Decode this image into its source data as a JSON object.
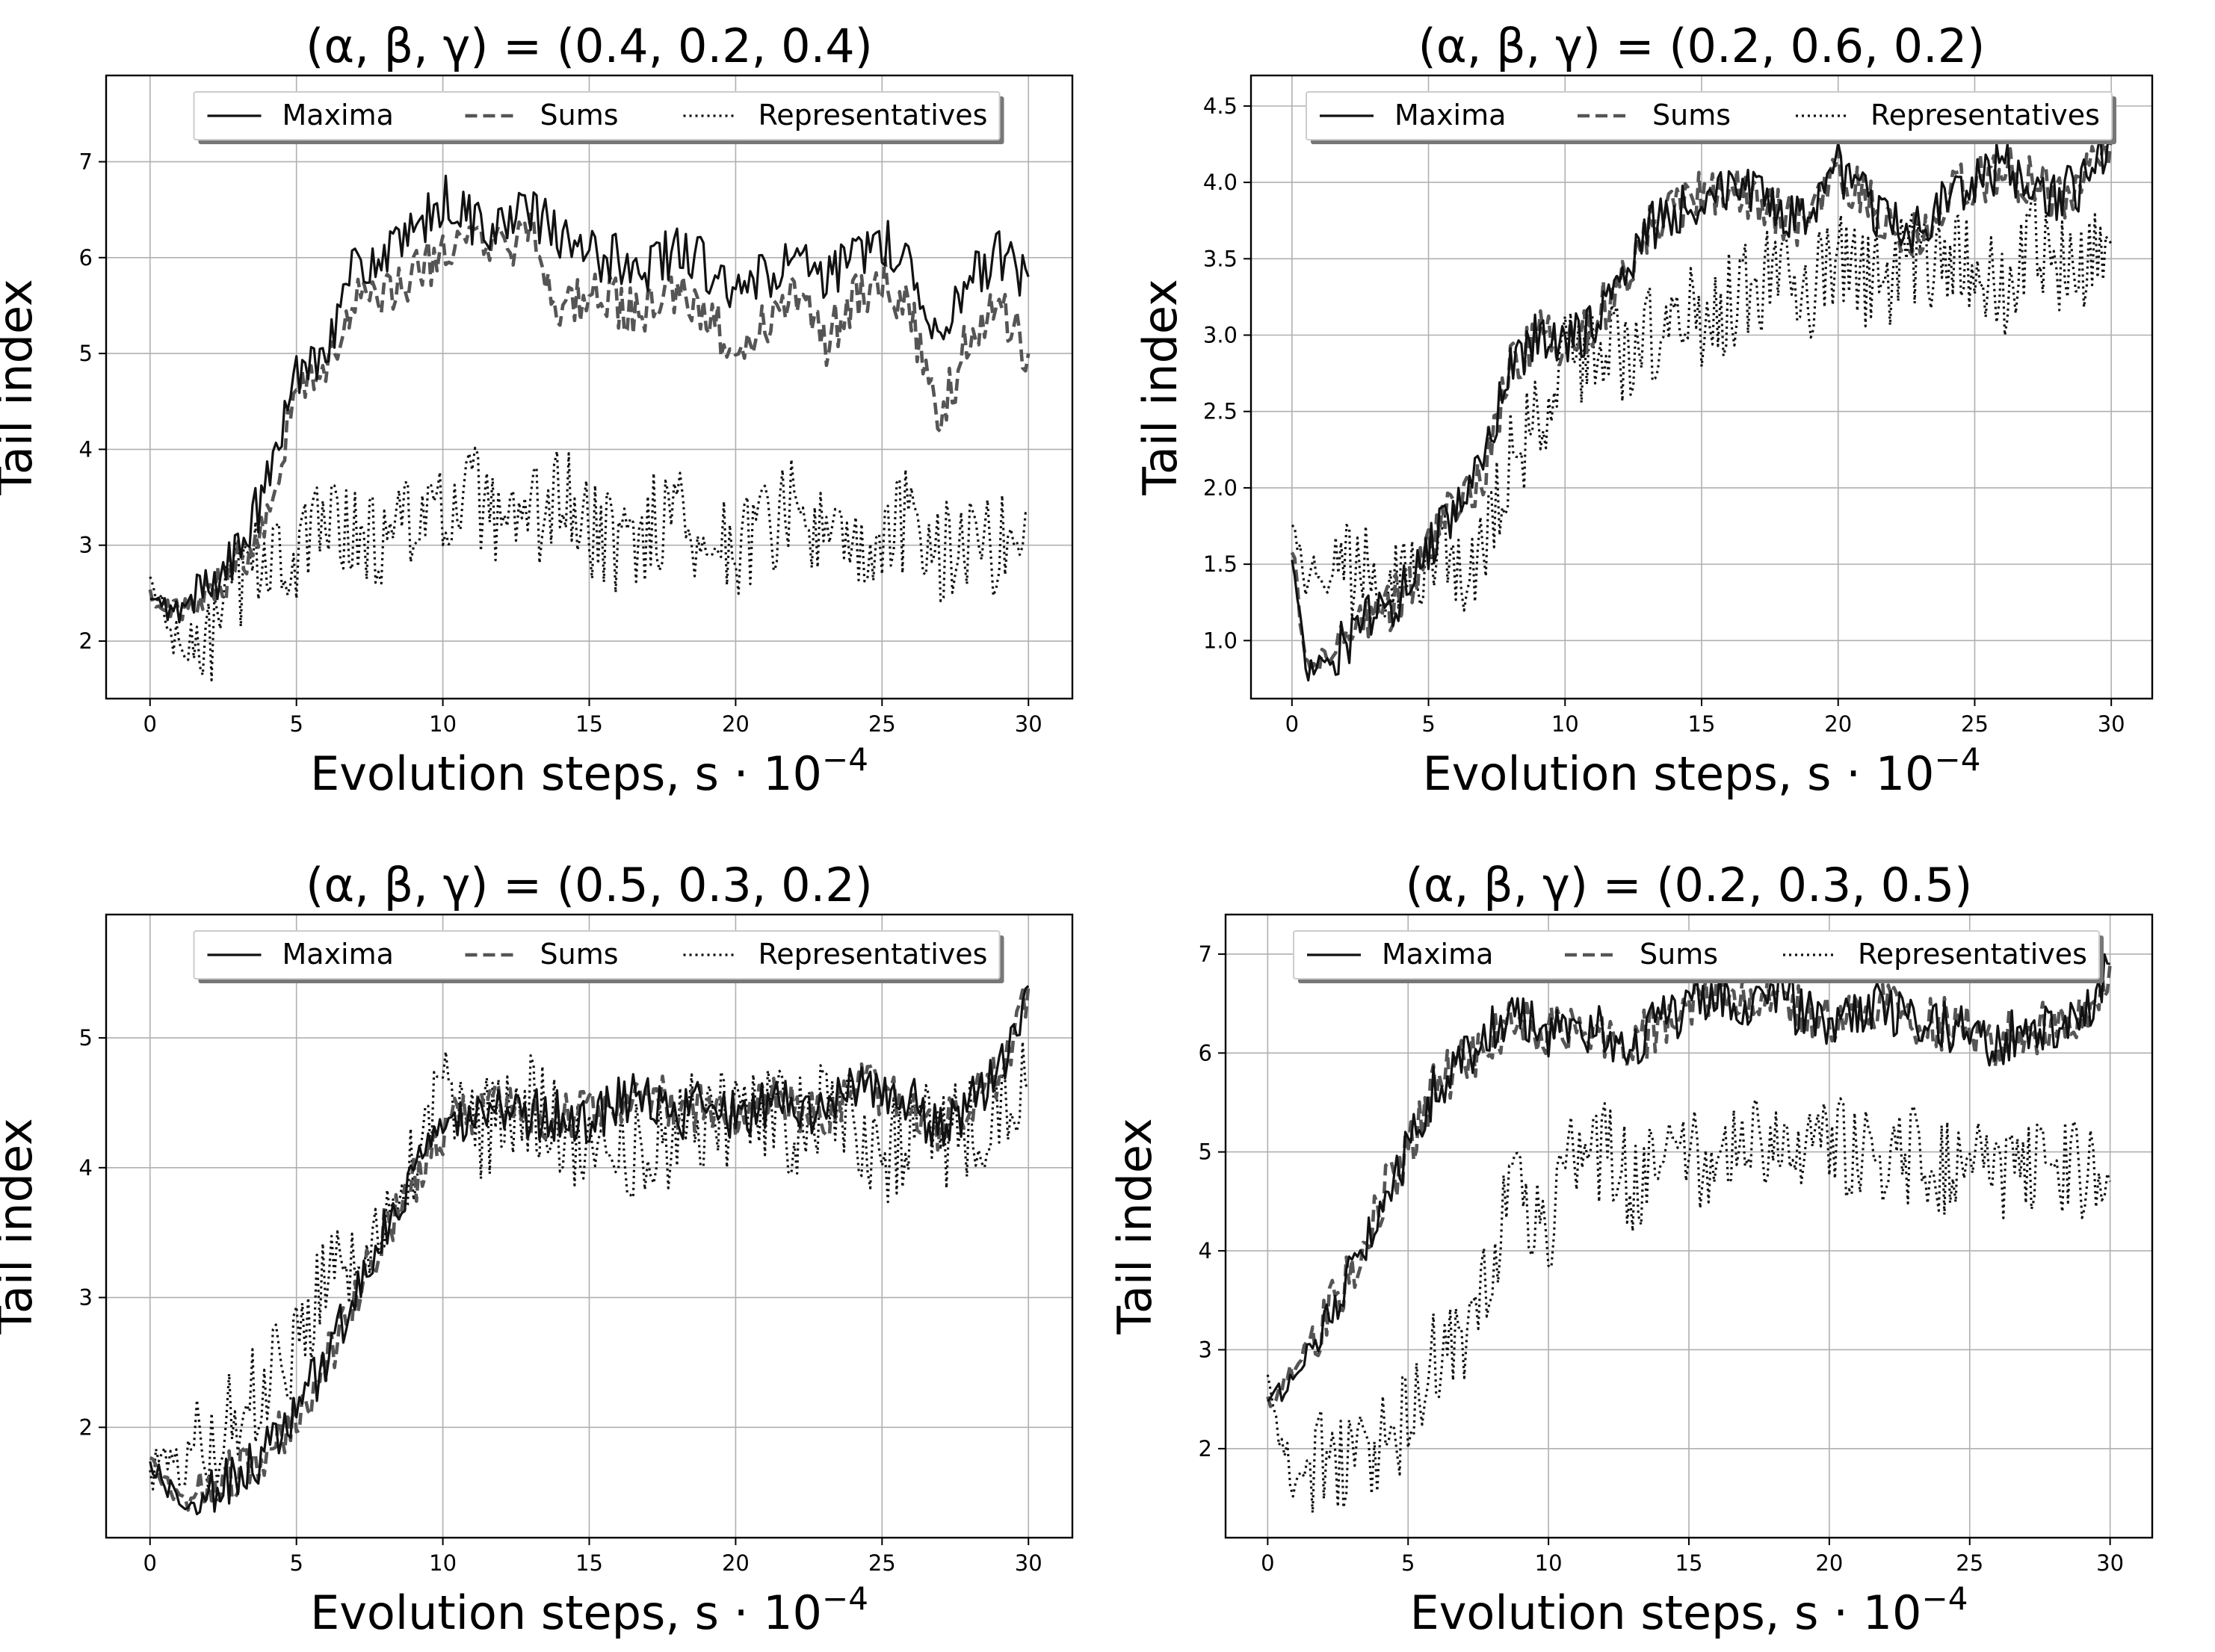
{
  "chart_data": [
    {
      "type": "line",
      "title": "(α, β, γ) = (0.4, 0.2, 0.4)",
      "xlabel": "Evolution steps, s · 10",
      "xlabel_sup": "−4",
      "ylabel": "Tail index",
      "xlim": [
        -1.5,
        31.5
      ],
      "ylim": [
        1.4,
        7.9
      ],
      "xticks": [
        0,
        5,
        10,
        15,
        20,
        25,
        30
      ],
      "yticks": [
        2,
        3,
        4,
        5,
        6,
        7
      ],
      "grid": true,
      "legend": {
        "position": "top-center",
        "entries": [
          "Maxima",
          "Sums",
          "Representatives"
        ]
      },
      "series": [
        {
          "name": "Maxima",
          "style": "solid",
          "color": "#111111",
          "x": [
            0,
            1,
            2,
            3,
            4,
            5,
            6,
            7,
            8,
            9,
            10,
            11,
            12,
            13,
            14,
            15,
            16,
            17,
            18,
            19,
            20,
            21,
            22,
            23,
            24,
            25,
            26,
            27,
            28,
            29,
            30
          ],
          "y": [
            2.4,
            2.3,
            2.6,
            2.9,
            3.6,
            4.8,
            5.1,
            5.9,
            6.0,
            6.2,
            6.6,
            6.4,
            6.3,
            6.5,
            6.2,
            6.0,
            6.0,
            5.9,
            6.1,
            5.9,
            5.6,
            5.8,
            6.0,
            5.7,
            6.0,
            6.2,
            5.9,
            5.2,
            5.8,
            6.0,
            5.8
          ]
        },
        {
          "name": "Sums",
          "style": "dashed",
          "color": "#555555",
          "x": [
            0,
            1,
            2,
            3,
            4,
            5,
            6,
            7,
            8,
            9,
            10,
            11,
            12,
            13,
            14,
            15,
            16,
            17,
            18,
            19,
            20,
            21,
            22,
            23,
            24,
            25,
            26,
            27,
            28,
            29,
            30
          ],
          "y": [
            2.5,
            2.3,
            2.5,
            2.8,
            3.4,
            4.6,
            4.9,
            5.5,
            5.6,
            5.8,
            6.1,
            6.1,
            6.1,
            6.2,
            5.5,
            5.6,
            5.5,
            5.4,
            5.6,
            5.4,
            5.0,
            5.3,
            5.7,
            5.1,
            5.6,
            5.8,
            5.4,
            4.3,
            5.2,
            5.5,
            5.0
          ]
        },
        {
          "name": "Representatives",
          "style": "dotted",
          "color": "#111111",
          "x": [
            0,
            1,
            2,
            3,
            4,
            5,
            6,
            7,
            8,
            9,
            10,
            11,
            12,
            13,
            14,
            15,
            16,
            17,
            18,
            19,
            20,
            21,
            22,
            23,
            24,
            25,
            26,
            27,
            28,
            29,
            30
          ],
          "y": [
            2.6,
            1.9,
            2.0,
            2.6,
            3.0,
            2.7,
            3.5,
            3.1,
            3.0,
            3.4,
            3.2,
            3.6,
            3.0,
            3.2,
            3.6,
            3.1,
            3.0,
            3.2,
            3.4,
            3.0,
            3.0,
            3.2,
            3.4,
            3.1,
            2.8,
            3.0,
            3.3,
            2.9,
            3.1,
            3.0,
            3.3
          ]
        }
      ]
    },
    {
      "type": "line",
      "title": "(α, β, γ) = (0.2, 0.6, 0.2)",
      "xlabel": "Evolution steps, s · 10",
      "xlabel_sup": "−4",
      "ylabel": "Tail index",
      "xlim": [
        -1.5,
        31.5
      ],
      "ylim": [
        0.62,
        4.7
      ],
      "xticks": [
        0,
        5,
        10,
        15,
        20,
        25,
        30
      ],
      "yticks": [
        1.0,
        1.5,
        2.0,
        2.5,
        3.0,
        3.5,
        4.0,
        4.5
      ],
      "grid": true,
      "legend": {
        "position": "top-center",
        "entries": [
          "Maxima",
          "Sums",
          "Representatives"
        ]
      },
      "series": [
        {
          "name": "Maxima",
          "style": "solid",
          "color": "#111111",
          "x": [
            0,
            0.5,
            1,
            2,
            3,
            4,
            5,
            6,
            7,
            8,
            9,
            10,
            11,
            12,
            13,
            14,
            15,
            16,
            17,
            18,
            19,
            20,
            21,
            22,
            23,
            24,
            25,
            26,
            27,
            28,
            29,
            30
          ],
          "y": [
            1.6,
            0.8,
            0.85,
            1.0,
            1.15,
            1.3,
            1.6,
            1.9,
            2.1,
            2.8,
            3.0,
            2.9,
            3.1,
            3.3,
            3.7,
            3.8,
            3.9,
            4.0,
            3.9,
            3.8,
            3.7,
            4.1,
            3.9,
            3.7,
            3.7,
            3.9,
            4.0,
            4.1,
            4.0,
            3.9,
            4.0,
            4.3
          ]
        },
        {
          "name": "Sums",
          "style": "dashed",
          "color": "#555555",
          "x": [
            0,
            0.5,
            1,
            2,
            3,
            4,
            5,
            6,
            7,
            8,
            9,
            10,
            11,
            12,
            13,
            14,
            15,
            16,
            17,
            18,
            19,
            20,
            21,
            22,
            23,
            24,
            25,
            26,
            27,
            28,
            29,
            30
          ],
          "y": [
            1.65,
            0.82,
            0.86,
            1.0,
            1.15,
            1.3,
            1.6,
            1.9,
            2.1,
            2.8,
            3.0,
            2.9,
            3.1,
            3.3,
            3.7,
            3.8,
            3.9,
            4.0,
            3.9,
            3.8,
            3.7,
            4.1,
            3.9,
            3.7,
            3.7,
            3.9,
            4.0,
            4.1,
            4.0,
            3.9,
            4.0,
            4.3
          ]
        },
        {
          "name": "Representatives",
          "style": "dotted",
          "color": "#111111",
          "x": [
            0,
            0.5,
            1,
            2,
            3,
            4,
            5,
            6,
            7,
            8,
            9,
            10,
            11,
            12,
            13,
            14,
            15,
            16,
            17,
            18,
            19,
            20,
            21,
            22,
            23,
            24,
            25,
            26,
            27,
            28,
            29,
            30
          ],
          "y": [
            1.9,
            1.4,
            1.45,
            1.45,
            1.5,
            1.5,
            1.45,
            1.5,
            1.5,
            2.2,
            2.4,
            2.8,
            2.9,
            2.9,
            3.0,
            3.1,
            3.1,
            3.2,
            3.3,
            3.4,
            3.3,
            3.5,
            3.4,
            3.4,
            3.5,
            3.5,
            3.4,
            3.3,
            3.6,
            3.5,
            3.4,
            3.6
          ]
        }
      ]
    },
    {
      "type": "line",
      "title": "(α, β, γ) = (0.5, 0.3, 0.2)",
      "xlabel": "Evolution steps, s · 10",
      "xlabel_sup": "−4",
      "ylabel": "Tail index",
      "xlim": [
        -1.5,
        31.5
      ],
      "ylim": [
        1.15,
        5.95
      ],
      "xticks": [
        0,
        5,
        10,
        15,
        20,
        25,
        30
      ],
      "yticks": [
        2,
        3,
        4,
        5
      ],
      "grid": true,
      "legend": {
        "position": "top-center",
        "entries": [
          "Maxima",
          "Sums",
          "Representatives"
        ]
      },
      "series": [
        {
          "name": "Maxima",
          "style": "solid",
          "color": "#111111",
          "x": [
            0,
            1,
            2,
            3,
            4,
            5,
            6,
            7,
            8,
            9,
            10,
            11,
            12,
            13,
            14,
            15,
            16,
            17,
            18,
            19,
            20,
            21,
            22,
            23,
            24,
            25,
            26,
            27,
            28,
            29,
            30
          ],
          "y": [
            1.75,
            1.4,
            1.5,
            1.65,
            1.8,
            2.1,
            2.5,
            3.0,
            3.5,
            3.9,
            4.3,
            4.4,
            4.5,
            4.4,
            4.4,
            4.4,
            4.5,
            4.6,
            4.4,
            4.5,
            4.4,
            4.5,
            4.5,
            4.4,
            4.6,
            4.6,
            4.5,
            4.3,
            4.5,
            4.7,
            5.4
          ]
        },
        {
          "name": "Sums",
          "style": "dashed",
          "color": "#555555",
          "x": [
            0,
            1,
            2,
            3,
            4,
            5,
            6,
            7,
            8,
            9,
            10,
            11,
            12,
            13,
            14,
            15,
            16,
            17,
            18,
            19,
            20,
            21,
            22,
            23,
            24,
            25,
            26,
            27,
            28,
            29,
            30
          ],
          "y": [
            1.78,
            1.42,
            1.5,
            1.66,
            1.82,
            2.1,
            2.5,
            3.0,
            3.5,
            3.9,
            4.3,
            4.4,
            4.5,
            4.4,
            4.4,
            4.4,
            4.5,
            4.6,
            4.4,
            4.5,
            4.4,
            4.5,
            4.5,
            4.4,
            4.6,
            4.6,
            4.5,
            4.3,
            4.5,
            4.7,
            5.4
          ]
        },
        {
          "name": "Representatives",
          "style": "dotted",
          "color": "#111111",
          "x": [
            0,
            1,
            2,
            3,
            4,
            5,
            6,
            7,
            8,
            9,
            10,
            11,
            12,
            13,
            14,
            15,
            16,
            17,
            18,
            19,
            20,
            21,
            22,
            23,
            24,
            25,
            26,
            27,
            28,
            29,
            30
          ],
          "y": [
            1.7,
            1.7,
            1.9,
            2.1,
            2.4,
            2.6,
            3.2,
            3.3,
            3.8,
            4.0,
            4.6,
            4.2,
            4.4,
            4.5,
            4.3,
            4.2,
            4.2,
            4.1,
            4.3,
            4.4,
            4.3,
            4.4,
            4.3,
            4.5,
            4.4,
            4.1,
            4.3,
            4.2,
            4.3,
            4.5,
            4.6
          ]
        }
      ]
    },
    {
      "type": "line",
      "title": "(α, β, γ) = (0.2, 0.3, 0.5)",
      "xlabel": "Evolution steps, s · 10",
      "xlabel_sup": "−4",
      "ylabel": "Tail index",
      "xlim": [
        -1.5,
        31.5
      ],
      "ylim": [
        1.1,
        7.4
      ],
      "xticks": [
        0,
        5,
        10,
        15,
        20,
        25,
        30
      ],
      "yticks": [
        2,
        3,
        4,
        5,
        6,
        7
      ],
      "grid": true,
      "legend": {
        "position": "top-center",
        "entries": [
          "Maxima",
          "Sums",
          "Representatives"
        ]
      },
      "series": [
        {
          "name": "Maxima",
          "style": "solid",
          "color": "#111111",
          "x": [
            0,
            1,
            2,
            3,
            4,
            5,
            6,
            7,
            8,
            9,
            10,
            11,
            12,
            13,
            14,
            15,
            16,
            17,
            18,
            19,
            20,
            21,
            22,
            23,
            24,
            25,
            26,
            27,
            28,
            29,
            30
          ],
          "y": [
            2.4,
            2.8,
            3.3,
            3.8,
            4.5,
            5.0,
            5.7,
            5.9,
            6.2,
            6.4,
            6.2,
            6.3,
            6.2,
            6.1,
            6.3,
            6.5,
            6.6,
            6.5,
            6.6,
            6.4,
            6.3,
            6.4,
            6.5,
            6.3,
            6.3,
            6.2,
            6.1,
            6.3,
            6.2,
            6.3,
            6.9
          ]
        },
        {
          "name": "Sums",
          "style": "dashed",
          "color": "#555555",
          "x": [
            0,
            1,
            2,
            3,
            4,
            5,
            6,
            7,
            8,
            9,
            10,
            11,
            12,
            13,
            14,
            15,
            16,
            17,
            18,
            19,
            20,
            21,
            22,
            23,
            24,
            25,
            26,
            27,
            28,
            29,
            30
          ],
          "y": [
            2.45,
            2.8,
            3.3,
            3.8,
            4.5,
            5.0,
            5.7,
            5.9,
            6.2,
            6.4,
            6.2,
            6.3,
            6.2,
            6.1,
            6.3,
            6.5,
            6.6,
            6.5,
            6.6,
            6.4,
            6.3,
            6.4,
            6.5,
            6.3,
            6.3,
            6.2,
            6.1,
            6.3,
            6.2,
            6.3,
            6.9
          ]
        },
        {
          "name": "Representatives",
          "style": "dotted",
          "color": "#111111",
          "x": [
            0,
            1,
            2,
            3,
            4,
            5,
            6,
            7,
            8,
            9,
            10,
            11,
            12,
            13,
            14,
            15,
            16,
            17,
            18,
            19,
            20,
            21,
            22,
            23,
            24,
            25,
            26,
            27,
            28,
            29,
            30
          ],
          "y": [
            2.6,
            1.5,
            1.9,
            1.9,
            2.0,
            2.3,
            2.9,
            3.2,
            4.0,
            4.7,
            4.1,
            5.0,
            5.0,
            4.7,
            4.8,
            5.0,
            4.9,
            5.1,
            5.0,
            4.9,
            5.0,
            5.1,
            4.9,
            5.0,
            4.8,
            5.0,
            4.6,
            4.9,
            4.8,
            4.8,
            4.7
          ]
        }
      ]
    }
  ]
}
